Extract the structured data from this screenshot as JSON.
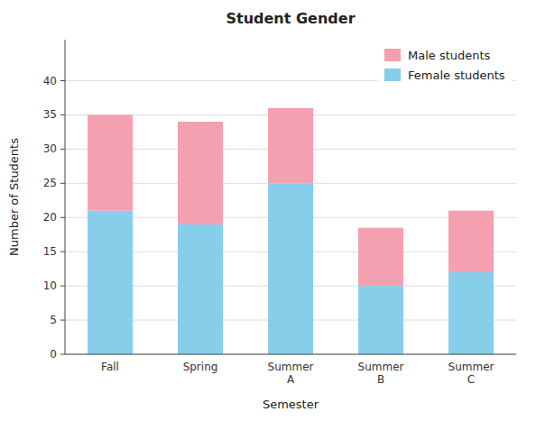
{
  "chart_data": {
    "type": "bar",
    "stacked": true,
    "title": "Student Gender",
    "xlabel": "Semester",
    "ylabel": "Number of Students",
    "categories": [
      "Fall",
      "Spring",
      "Summer\nA",
      "Summer\nB",
      "Summer\nC"
    ],
    "series": [
      {
        "name": "Female students",
        "color": "#87CEEB",
        "values": [
          21,
          19,
          25,
          10,
          12
        ]
      },
      {
        "name": "Male students",
        "color": "#F4A0B0",
        "values": [
          14,
          15,
          11,
          8.5,
          9
        ]
      }
    ],
    "ylim": [
      0,
      46
    ],
    "yticks": [
      0,
      5,
      10,
      15,
      20,
      25,
      30,
      35,
      40
    ],
    "grid": true,
    "legend": "upper right"
  }
}
